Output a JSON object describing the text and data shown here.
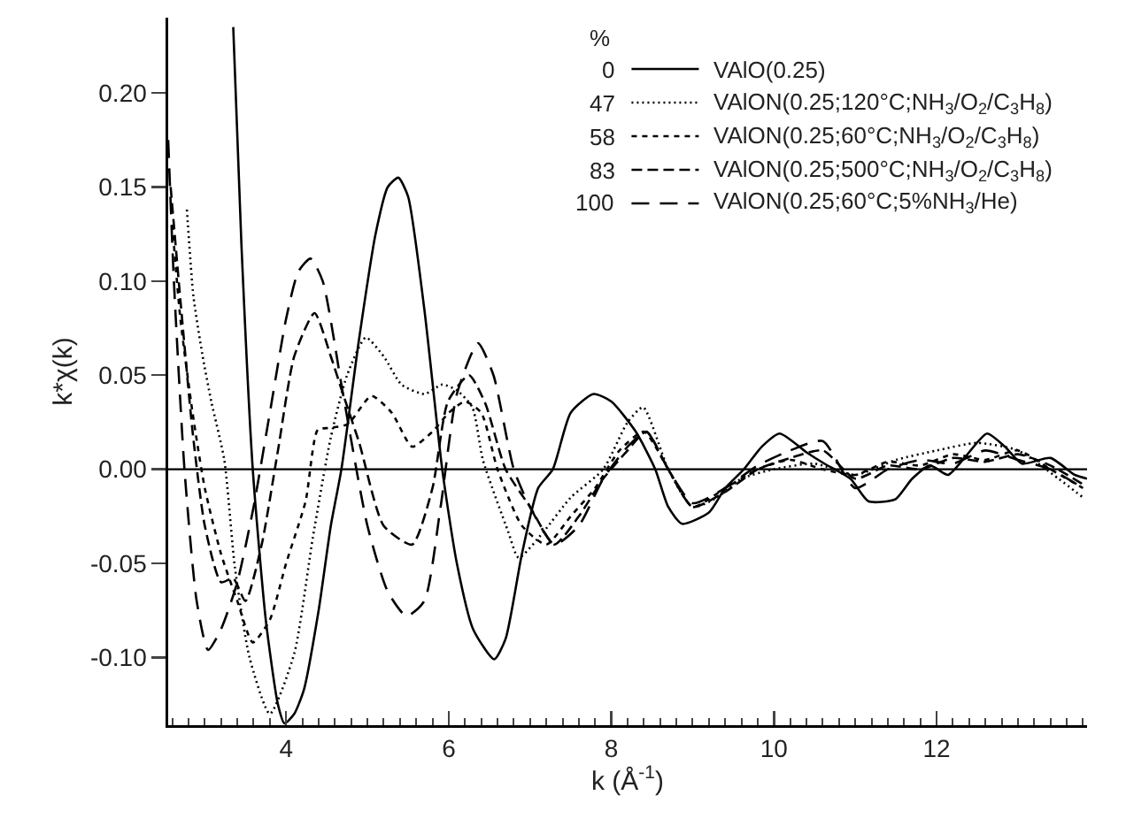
{
  "chart_data": {
    "type": "line",
    "xlabel": "k (Å$^{-1}$)",
    "ylabel": "k*χ(k)",
    "legend_title": "%",
    "annotations": [
      "0",
      "47",
      "58",
      "83",
      "100"
    ],
    "xlim": [
      2.55,
      13.85
    ],
    "ylim": [
      -0.136,
      0.24
    ],
    "xticks": [
      {
        "value": 2.6,
        "label": null
      },
      {
        "value": 2.8,
        "label": null
      },
      {
        "value": 3,
        "label": null
      },
      {
        "value": 3.2,
        "label": null
      },
      {
        "value": 3.4,
        "label": null
      },
      {
        "value": 3.6,
        "label": null
      },
      {
        "value": 3.8,
        "label": null
      },
      4,
      {
        "value": 4.2,
        "label": null
      },
      {
        "value": 4.4,
        "label": null
      },
      {
        "value": 4.6,
        "label": null
      },
      {
        "value": 4.8,
        "label": null
      },
      {
        "value": 5,
        "label": null
      },
      {
        "value": 5.2,
        "label": null
      },
      {
        "value": 5.4,
        "label": null
      },
      {
        "value": 5.6,
        "label": null
      },
      {
        "value": 5.8,
        "label": null
      },
      6,
      {
        "value": 6.2,
        "label": null
      },
      {
        "value": 6.4,
        "label": null
      },
      {
        "value": 6.6,
        "label": null
      },
      {
        "value": 6.8,
        "label": null
      },
      {
        "value": 7,
        "label": null
      },
      {
        "value": 7.2,
        "label": null
      },
      {
        "value": 7.4,
        "label": null
      },
      {
        "value": 7.6,
        "label": null
      },
      {
        "value": 7.8,
        "label": null
      },
      8,
      {
        "value": 8.2,
        "label": null
      },
      {
        "value": 8.4,
        "label": null
      },
      {
        "value": 8.6,
        "label": null
      },
      {
        "value": 8.8,
        "label": null
      },
      {
        "value": 9,
        "label": null
      },
      {
        "value": 9.2,
        "label": null
      },
      {
        "value": 9.4,
        "label": null
      },
      {
        "value": 9.6,
        "label": null
      },
      {
        "value": 9.8,
        "label": null
      },
      10,
      {
        "value": 10.2,
        "label": null
      },
      {
        "value": 10.4,
        "label": null
      },
      {
        "value": 10.6,
        "label": null
      },
      {
        "value": 10.8,
        "label": null
      },
      {
        "value": 11,
        "label": null
      },
      {
        "value": 11.2,
        "label": null
      },
      {
        "value": 11.4,
        "label": null
      },
      {
        "value": 11.6,
        "label": null
      },
      {
        "value": 11.8,
        "label": null
      },
      12,
      {
        "value": 12.2,
        "label": null
      },
      {
        "value": 12.4,
        "label": null
      },
      {
        "value": 12.6,
        "label": null
      },
      {
        "value": 12.8,
        "label": null
      },
      {
        "value": 13,
        "label": null
      },
      {
        "value": 13.2,
        "label": null
      },
      {
        "value": 13.4,
        "label": null
      },
      {
        "value": 13.6,
        "label": null
      },
      {
        "value": 13.8,
        "label": null
      }
    ],
    "yticks": [
      {
        "value": -0.1,
        "label": "-0.10"
      },
      {
        "value": -0.05,
        "label": "-0.05"
      },
      {
        "value": 0,
        "label": "0.00"
      },
      {
        "value": 0.05,
        "label": "0.05"
      },
      {
        "value": 0.1,
        "label": "0.10"
      },
      {
        "value": 0.15,
        "label": "0.15"
      },
      {
        "value": 0.2,
        "label": "0.20"
      }
    ],
    "grid": false,
    "legend": "top right",
    "marker": "none",
    "ref_lines": [
      {
        "axis": "y",
        "value": 0,
        "color": "#000000"
      }
    ],
    "series": [
      {
        "name": "VAlO(0.25)",
        "color": "#000000",
        "line_style": "solid",
        "x": [
          3.35,
          3.45,
          3.59,
          3.75,
          3.9,
          3.98,
          4.1,
          4.22,
          4.4,
          4.55,
          4.68,
          4.9,
          5.1,
          5.25,
          5.38,
          5.5,
          5.7,
          5.92,
          6.1,
          6.3,
          6.56,
          6.7,
          6.9,
          7.1,
          7.28,
          7.5,
          7.78,
          8.0,
          8.3,
          8.54,
          8.7,
          8.87,
          9.2,
          9.4,
          9.63,
          9.85,
          10.07,
          10.4,
          10.62,
          10.94,
          11.16,
          11.49,
          11.7,
          11.92,
          12.14,
          12.36,
          12.62,
          12.84,
          13.05,
          13.4,
          13.7,
          13.85
        ],
        "values": [
          0.235,
          0.12,
          0,
          -0.08,
          -0.125,
          -0.135,
          -0.13,
          -0.117,
          -0.075,
          -0.03,
          0,
          0.07,
          0.125,
          0.15,
          0.155,
          0.145,
          0.085,
          0,
          -0.05,
          -0.085,
          -0.101,
          -0.09,
          -0.045,
          -0.01,
          0,
          0.03,
          0.04,
          0.036,
          0.02,
          0,
          -0.02,
          -0.029,
          -0.023,
          -0.01,
          0,
          0.012,
          0.019,
          0.009,
          0.003,
          -0.005,
          -0.017,
          -0.016,
          -0.005,
          0.002,
          -0.003,
          0.007,
          0.019,
          0.012,
          0.003,
          0.006,
          -0.003,
          -0.005
        ]
      },
      {
        "name": "VAlON(0.25;120°C;NH$_{3}$/O$_{2}$/C$_{3}$H$_{8}$)",
        "color": "#000000",
        "line_style": "dotted",
        "x": [
          2.78,
          2.86,
          2.97,
          3.08,
          3.24,
          3.37,
          3.55,
          3.8,
          4.1,
          4.33,
          4.55,
          4.75,
          4.98,
          5.2,
          5.42,
          5.7,
          5.92,
          6.1,
          6.29,
          6.42,
          6.73,
          6.86,
          7.17,
          7.5,
          7.9,
          8.2,
          8.39,
          8.7,
          9.0,
          9.3,
          9.6,
          10.0,
          10.5,
          11.0,
          11.5,
          12.0,
          12.5,
          13.0,
          13.5,
          13.8
        ],
        "values": [
          0.138,
          0.092,
          0.061,
          0.036,
          0.005,
          -0.052,
          -0.1,
          -0.13,
          -0.098,
          -0.036,
          0.017,
          0.05,
          0.07,
          0.06,
          0.045,
          0.04,
          0.045,
          0.042,
          0.033,
          0.005,
          -0.033,
          -0.047,
          -0.033,
          -0.015,
          0.0,
          0.025,
          0.033,
          0.0,
          -0.02,
          -0.015,
          -0.005,
          0.0,
          0.003,
          -0.003,
          0.005,
          0.01,
          0.014,
          0.01,
          -0.005,
          -0.015
        ]
      },
      {
        "name": "VAlON(0.25;60°C;NH$_{3}$/O$_{2}$/C$_{3}$H$_{8}$)",
        "color": "#000000",
        "line_style": "dashed",
        "x": [
          2.6,
          2.7,
          2.85,
          3.0,
          3.2,
          3.4,
          3.59,
          3.8,
          4.0,
          4.24,
          4.39,
          4.55,
          4.76,
          5.05,
          5.3,
          5.55,
          5.8,
          6.0,
          6.2,
          6.4,
          6.6,
          6.9,
          7.2,
          7.5,
          7.8,
          8.1,
          8.4,
          8.7,
          9.0,
          9.4,
          9.8,
          10.2,
          10.6,
          11.0,
          11.4,
          11.8,
          12.2,
          12.6,
          13.0,
          13.4,
          13.8
        ],
        "values": [
          0.13,
          0.08,
          0.03,
          -0.01,
          -0.045,
          -0.07,
          -0.092,
          -0.08,
          -0.05,
          -0.017,
          0.021,
          0.022,
          0.024,
          0.039,
          0.03,
          0.012,
          0.02,
          0.03,
          0.036,
          0.03,
          0.0,
          -0.03,
          -0.04,
          -0.025,
          -0.01,
          0.01,
          0.02,
          0.0,
          -0.02,
          -0.01,
          0.0,
          0.005,
          0.0,
          -0.003,
          0.004,
          0.002,
          0.008,
          0.005,
          0.01,
          0.0,
          -0.01
        ]
      },
      {
        "name": "VAlON(0.25;500°C;NH$_{3}$/O$_{2}$/C$_{3}$H$_{8}$)",
        "color": "#000000",
        "line_style": "dashed",
        "x": [
          2.58,
          2.7,
          2.85,
          3.0,
          3.2,
          3.35,
          3.5,
          3.7,
          3.9,
          4.1,
          4.35,
          4.55,
          4.7,
          4.9,
          5.2,
          5.55,
          5.8,
          5.99,
          6.25,
          6.45,
          6.7,
          7.0,
          7.3,
          7.6,
          7.9,
          8.2,
          8.43,
          8.7,
          9.0,
          9.4,
          9.8,
          10.2,
          10.6,
          11.0,
          11.4,
          11.8,
          12.2,
          12.6,
          13.0,
          13.4,
          13.8
        ],
        "values": [
          0.15,
          0.09,
          0.02,
          -0.03,
          -0.06,
          -0.058,
          -0.07,
          -0.04,
          0.01,
          0.06,
          0.083,
          0.06,
          0.04,
          0.014,
          -0.03,
          -0.04,
          -0.01,
          0.036,
          0.05,
          0.035,
          0.0,
          -0.02,
          -0.04,
          -0.025,
          -0.005,
          0.01,
          0.02,
          0.0,
          -0.02,
          -0.012,
          0.0,
          0.006,
          0.01,
          -0.005,
          0.002,
          0.0,
          0.006,
          0.004,
          0.008,
          0.002,
          -0.008
        ]
      },
      {
        "name": "VAlON(0.25;60°C;5%NH$_{3}$/He)",
        "color": "#000000",
        "line_style": "longdash",
        "x": [
          2.55,
          2.62,
          2.75,
          2.9,
          3.04,
          3.2,
          3.4,
          3.6,
          3.8,
          4.0,
          4.15,
          4.3,
          4.45,
          4.7,
          5.0,
          5.25,
          5.48,
          5.7,
          5.9,
          6.1,
          6.36,
          6.55,
          6.8,
          7.0,
          7.3,
          7.6,
          7.9,
          8.2,
          8.43,
          8.7,
          9.0,
          9.4,
          9.8,
          10.2,
          10.6,
          11.0,
          11.4,
          11.8,
          12.2,
          12.6,
          13.0,
          13.4,
          13.8
        ],
        "values": [
          0.175,
          0.1,
          0.0,
          -0.07,
          -0.096,
          -0.085,
          -0.06,
          -0.02,
          0.03,
          0.08,
          0.105,
          0.112,
          0.1,
          0.04,
          -0.03,
          -0.065,
          -0.078,
          -0.07,
          -0.02,
          0.04,
          0.067,
          0.05,
          0.0,
          -0.02,
          -0.04,
          -0.03,
          -0.005,
          0.012,
          0.02,
          0.0,
          -0.018,
          -0.01,
          0.002,
          0.01,
          0.015,
          -0.01,
          0.0,
          0.005,
          0.003,
          0.01,
          0.005,
          0.0,
          -0.01
        ]
      }
    ]
  }
}
